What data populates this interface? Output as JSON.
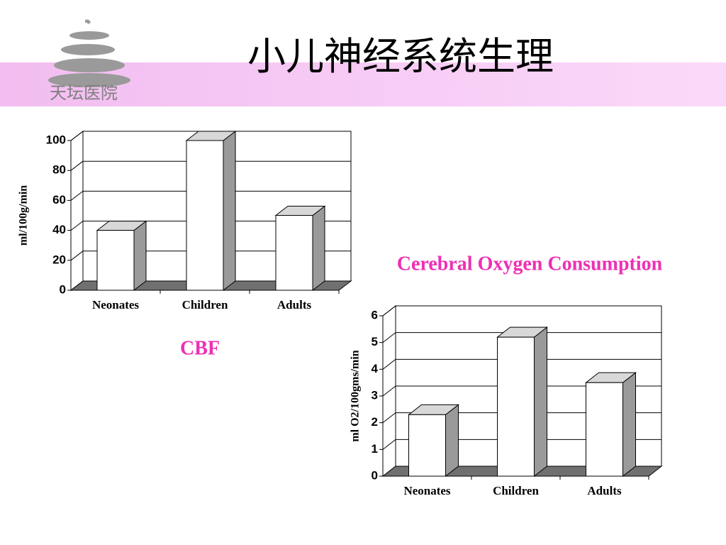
{
  "header": {
    "title": "小儿神经系统生理",
    "logo_text": "天坛医院"
  },
  "chart_data": [
    {
      "type": "bar",
      "title": "CBF",
      "y_label": "ml/100g/min",
      "categories": [
        "Neonates",
        "Children",
        "Adults"
      ],
      "values": [
        40,
        100,
        50
      ],
      "ylim": [
        0,
        100
      ],
      "yticks": [
        0,
        20,
        40,
        60,
        80,
        100
      ],
      "grid": true,
      "color": "#ffffff"
    },
    {
      "type": "bar",
      "title": "Cerebral Oxygen Consumption",
      "y_label": "ml O2/100gms/min",
      "categories": [
        "Neonates",
        "Children",
        "Adults"
      ],
      "values": [
        2.3,
        5.2,
        3.5
      ],
      "ylim": [
        0,
        6
      ],
      "yticks": [
        0,
        1,
        2,
        3,
        4,
        5,
        6
      ],
      "grid": true,
      "color": "#ffffff"
    }
  ]
}
